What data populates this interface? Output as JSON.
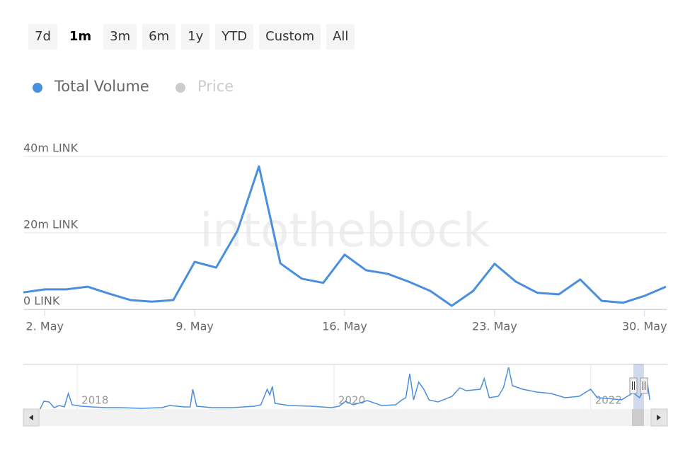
{
  "range_buttons": [
    {
      "label": "7d",
      "active": false
    },
    {
      "label": "1m",
      "active": true
    },
    {
      "label": "3m",
      "active": false
    },
    {
      "label": "6m",
      "active": false
    },
    {
      "label": "1y",
      "active": false
    },
    {
      "label": "YTD",
      "active": false
    },
    {
      "label": "Custom",
      "active": false
    },
    {
      "label": "All",
      "active": false
    }
  ],
  "chart_data": {
    "type": "line",
    "watermark": "intotheblock",
    "legend": [
      {
        "name": "Total Volume",
        "color": "#4a8fdf",
        "active": true
      },
      {
        "name": "Price",
        "color": "#cccccc",
        "active": false
      }
    ],
    "categories": [
      null,
      "2. May",
      null,
      null,
      null,
      null,
      null,
      null,
      "9. May",
      null,
      null,
      null,
      null,
      null,
      null,
      "16. May",
      null,
      null,
      null,
      null,
      null,
      null,
      "23. May",
      null,
      null,
      null,
      null,
      null,
      null,
      "30. May",
      null
    ],
    "series": [
      {
        "name": "Total Volume",
        "color": "#4a8fdf",
        "values": [
          4400000,
          5200000,
          5200000,
          5900000,
          4100000,
          2400000,
          2000000,
          2400000,
          12400000,
          10900000,
          20600000,
          37400000,
          12000000,
          8000000,
          6900000,
          14300000,
          10200000,
          9300000,
          7200000,
          4800000,
          900000,
          4800000,
          11900000,
          7200000,
          4300000,
          3900000,
          7800000,
          2200000,
          1700000,
          3500000,
          5900000
        ]
      }
    ],
    "ylim": [
      0,
      40000000
    ],
    "yticks": [
      {
        "value": 0,
        "label": "0 LINK"
      },
      {
        "value": 20000000,
        "label": "20m LINK"
      },
      {
        "value": 40000000,
        "label": "40m LINK"
      }
    ],
    "grid": true,
    "navigator": {
      "color": "#4a8fdf",
      "x": [
        2017.71,
        2017.74,
        2017.78,
        2017.82,
        2017.86,
        2017.9,
        2017.93,
        2017.96,
        2018.03,
        2018.11,
        2018.22,
        2018.33,
        2018.5,
        2018.66,
        2018.72,
        2018.83,
        2018.88,
        2018.9,
        2018.93,
        2019.05,
        2019.21,
        2019.38,
        2019.43,
        2019.48,
        2019.5,
        2019.52,
        2019.54,
        2019.65,
        2019.82,
        2019.98,
        2020.04,
        2020.09,
        2020.15,
        2020.26,
        2020.37,
        2020.48,
        2020.53,
        2020.56,
        2020.59,
        2020.62,
        2020.66,
        2020.7,
        2020.74,
        2020.81,
        2020.92,
        2020.98,
        2021.03,
        2021.14,
        2021.17,
        2021.21,
        2021.28,
        2021.32,
        2021.36,
        2021.39,
        2021.47,
        2021.58,
        2021.69,
        2021.8,
        2021.91,
        2022.0,
        2022.05,
        2022.13,
        2022.24,
        2022.33,
        2022.38,
        2022.44,
        2022.46
      ],
      "values": [
        0,
        11,
        10,
        2,
        5,
        3,
        22,
        6,
        4,
        3,
        2,
        2,
        1,
        2,
        5,
        3,
        3,
        28,
        4,
        2,
        2,
        4,
        6,
        28,
        20,
        32,
        8,
        5,
        4,
        2,
        4,
        11,
        6,
        12,
        5,
        6,
        13,
        16,
        50,
        13,
        38,
        28,
        13,
        10,
        18,
        30,
        26,
        28,
        43,
        16,
        18,
        30,
        59,
        33,
        28,
        24,
        22,
        16,
        18,
        28,
        16,
        15,
        13,
        23,
        16,
        38,
        13
      ],
      "xlim": [
        2017.58,
        2022.47
      ],
      "ylim": [
        0,
        62
      ],
      "xticks": [
        2018,
        2020,
        2022
      ]
    }
  }
}
